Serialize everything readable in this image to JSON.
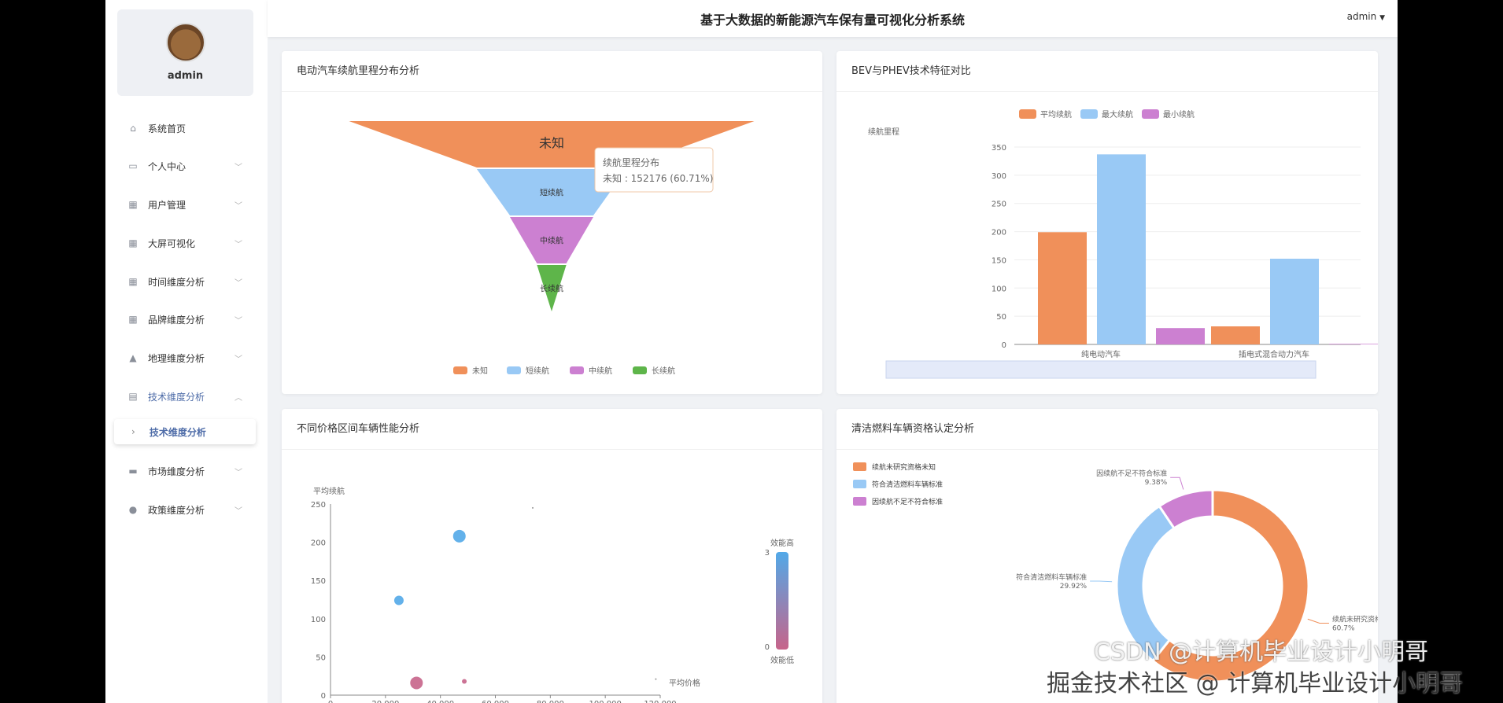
{
  "header": {
    "title": "基于大数据的新能源汽车保有量可视化分析系统",
    "user": "admin",
    "dropdown_icon": "caret-down-icon"
  },
  "sidebar": {
    "username": "admin",
    "items": [
      {
        "label": "系统首页",
        "icon": "home-icon",
        "expandable": false
      },
      {
        "label": "个人中心",
        "icon": "wallet-icon",
        "expandable": true
      },
      {
        "label": "用户管理",
        "icon": "grid-icon",
        "expandable": true
      },
      {
        "label": "大屏可视化",
        "icon": "grid-icon",
        "expandable": true
      },
      {
        "label": "时间维度分析",
        "icon": "grid-icon",
        "expandable": true
      },
      {
        "label": "品牌维度分析",
        "icon": "grid-icon",
        "expandable": true
      },
      {
        "label": "地理维度分析",
        "icon": "bag-icon",
        "expandable": true
      },
      {
        "label": "技术维度分析",
        "icon": "clipboard-icon",
        "expandable": true,
        "expanded": true
      },
      {
        "label": "市场维度分析",
        "icon": "monitor-icon",
        "expandable": true
      },
      {
        "label": "政策维度分析",
        "icon": "user-icon",
        "expandable": true
      }
    ],
    "active_sub": "技术维度分析"
  },
  "watermark": {
    "line1": "CSDN @计算机毕业设计小明哥",
    "line2": "掘金技术社区 @ 计算机毕业设计小明哥"
  },
  "chart_data": [
    {
      "type": "funnel",
      "title": "电动汽车续航里程分布分析",
      "categories": [
        "未知",
        "短续航",
        "中续航",
        "长续航"
      ],
      "values": [
        152176,
        56200,
        31300,
        11000
      ],
      "colors": [
        "#f0905a",
        "#99c9f5",
        "#cc80d1",
        "#5eb54a"
      ],
      "legend_placement": "bottom",
      "tooltip": {
        "title": "续航里程分布",
        "text": "未知 : 152176 (60.71%)"
      }
    },
    {
      "type": "bar",
      "title": "BEV与PHEV技术特征对比",
      "categories": [
        "纯电动汽车",
        "插电式混合动力汽车"
      ],
      "ylabel": "续航里程",
      "ylim": [
        0,
        350
      ],
      "yticks": [
        0,
        50,
        100,
        150,
        200,
        250,
        300,
        350
      ],
      "legend_placement": "top",
      "grid": true,
      "series": [
        {
          "name": "平均续航",
          "values": [
            199,
            32
          ],
          "color": "#f0905a"
        },
        {
          "name": "最大续航",
          "values": [
            337,
            152
          ],
          "color": "#99c9f5"
        },
        {
          "name": "最小续航",
          "values": [
            29,
            1
          ],
          "color": "#cc80d1"
        }
      ]
    },
    {
      "type": "scatter",
      "title": "不同价格区间车辆性能分析",
      "xlabel": "平均价格",
      "ylabel": "平均续航",
      "xlim": [
        0,
        120000
      ],
      "ylim": [
        0,
        250
      ],
      "yticks": [
        0,
        50,
        100,
        150,
        200,
        250
      ],
      "points": [
        {
          "x": 24900,
          "y": 124,
          "size": "medium",
          "efficiency": 3
        },
        {
          "x": 46900,
          "y": 208,
          "size": "large",
          "efficiency": 3
        },
        {
          "x": 31300,
          "y": 16,
          "size": "large",
          "efficiency": 0
        },
        {
          "x": 48700,
          "y": 18,
          "size": "small",
          "efficiency": 0
        },
        {
          "x": 73600,
          "y": 245,
          "size": "tiny",
          "efficiency": 1
        },
        {
          "x": 118400,
          "y": 21,
          "size": "tiny",
          "efficiency": 1
        }
      ],
      "visual_map": {
        "min": 0,
        "max": 3,
        "high_label": "效能高",
        "low_label": "效能低",
        "colors": [
          "#c7648a",
          "#52a9e8"
        ]
      }
    },
    {
      "type": "pie",
      "title": "清洁燃料车辆资格认定分析",
      "donut": true,
      "legend_placement": "top-left",
      "slices": [
        {
          "name": "续航未研究资格未知",
          "value": 60.7,
          "label": "60.7%",
          "color": "#f0905a"
        },
        {
          "name": "符合清洁燃料车辆标准",
          "value": 29.92,
          "label": "29.92%",
          "color": "#99c9f5"
        },
        {
          "name": "因续航不足不符合标准",
          "value": 9.38,
          "label": "9.38%",
          "color": "#cc80d1"
        }
      ]
    }
  ]
}
